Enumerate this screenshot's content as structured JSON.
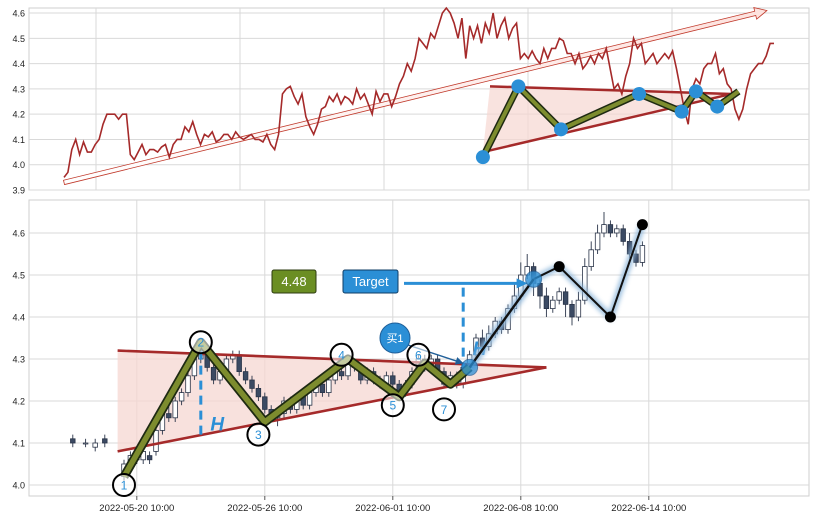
{
  "colors": {
    "line": "#a52a2a",
    "triangle_fill": "#f6d7d2",
    "zigzag_outer": "#1e2a12",
    "zigzag_inner": "#7d8c2e",
    "marker_blue": "#2b8fd6",
    "candle_up_fill": "#ffffff",
    "candle_down_fill": "#3b4a63",
    "target_box": "#2b8fd6",
    "value_box": "#6b8e23",
    "grid": "#d9d9d9"
  },
  "chart_data": [
    {
      "type": "line",
      "panel": "top",
      "ylim": [
        3.9,
        4.62
      ],
      "yticks": [
        "3.9",
        "4.0",
        "4.1",
        "4.2",
        "4.3",
        "4.4",
        "4.5",
        "4.6"
      ],
      "ytick_values": [
        3.9,
        4.0,
        4.1,
        4.2,
        4.3,
        4.4,
        4.5,
        4.6
      ],
      "xlim": [
        0,
        100
      ],
      "grid": true,
      "series": [
        {
          "values": [
            3.95,
            3.97,
            4.06,
            4.1,
            4.04,
            4.09,
            4.05,
            4.05,
            4.08,
            4.1,
            4.16,
            4.2,
            4.2,
            4.2,
            4.18,
            4.2,
            4.2,
            4.04,
            4.02,
            4.05,
            4.08,
            4.04,
            4.06,
            4.06,
            4.05,
            4.07,
            4.08,
            4.03,
            4.08,
            4.1,
            4.1,
            4.15,
            4.13,
            4.17,
            4.12,
            4.08,
            4.12,
            4.11,
            4.13,
            4.09,
            4.1,
            4.12,
            4.12,
            4.1,
            4.13,
            4.11,
            4.1,
            4.11,
            4.12,
            4.1,
            4.1,
            4.09,
            4.12,
            4.08,
            4.06,
            4.12,
            4.28,
            4.3,
            4.31,
            4.27,
            4.24,
            4.28,
            4.19,
            4.15,
            4.12,
            4.16,
            4.22,
            4.23,
            4.27,
            4.25,
            4.28,
            4.24,
            4.27,
            4.26,
            4.24,
            4.3,
            4.26,
            4.28,
            4.24,
            4.2,
            4.29,
            4.25,
            4.28,
            4.28,
            4.23,
            4.27,
            4.32,
            4.35,
            4.4,
            4.37,
            4.42,
            4.5,
            4.48,
            4.46,
            4.52,
            4.5,
            4.55,
            4.6,
            4.62,
            4.6,
            4.56,
            4.5,
            4.58,
            4.42,
            4.55,
            4.5,
            4.55,
            4.48,
            4.56,
            4.52,
            4.6,
            4.5,
            4.55,
            4.58,
            4.5,
            4.54,
            4.56,
            4.42,
            4.44,
            4.42,
            4.45,
            4.42,
            4.4,
            4.46,
            4.42,
            4.46,
            4.46,
            4.5,
            4.49,
            4.44,
            4.44,
            4.4,
            4.44,
            4.38,
            4.4,
            4.43,
            4.4,
            4.44,
            4.42,
            4.46,
            4.38,
            4.3,
            4.32,
            4.28,
            4.35,
            4.4,
            4.5,
            4.46,
            4.48,
            4.4,
            4.42,
            4.44,
            4.4,
            4.42,
            4.44,
            4.42,
            4.45,
            4.38,
            4.3,
            4.22,
            4.16,
            4.3,
            4.34,
            4.32,
            4.38,
            4.4,
            4.4,
            4.44,
            4.36,
            4.38,
            4.32,
            4.3,
            4.22,
            4.18,
            4.22,
            4.3,
            4.36,
            4.38,
            4.4,
            4.4,
            4.43,
            4.48,
            4.48
          ]
        }
      ],
      "triangle": {
        "apex": [
          94,
          4.28
        ],
        "upper_start": [
          60,
          4.31
        ],
        "lower_start": [
          59,
          4.05
        ]
      },
      "zigzag": [
        [
          59,
          4.03
        ],
        [
          64,
          4.31
        ],
        [
          70,
          4.14
        ],
        [
          81,
          4.28
        ],
        [
          87,
          4.21
        ],
        [
          89,
          4.29
        ],
        [
          92,
          4.23
        ],
        [
          95,
          4.29
        ]
      ],
      "markers": [
        [
          59,
          4.03
        ],
        [
          64,
          4.31
        ],
        [
          70,
          4.14
        ],
        [
          81,
          4.28
        ],
        [
          87,
          4.21
        ],
        [
          89,
          4.29
        ],
        [
          92,
          4.23
        ]
      ],
      "trend_arrow": {
        "from": [
          0,
          3.93
        ],
        "to": [
          99,
          4.61
        ]
      }
    },
    {
      "type": "candlestick",
      "panel": "bottom",
      "ylim": [
        3.98,
        4.66
      ],
      "yticks": [
        "4.0",
        "4.1",
        "4.2",
        "4.3",
        "4.4",
        "4.5",
        "4.6"
      ],
      "ytick_values": [
        4.0,
        4.1,
        4.2,
        4.3,
        4.4,
        4.5,
        4.6
      ],
      "xlim": [
        0,
        100
      ],
      "xticks": [
        "2022-05-20 10:00",
        "2022-05-26 10:00",
        "2022-06-01 10:00",
        "2022-06-08 10:00",
        "2022-06-14 10:00"
      ],
      "xtick_values": [
        12,
        32,
        52,
        72,
        92
      ],
      "grid": true,
      "candles": [
        [
          2,
          4.11,
          4.1,
          4.12,
          4.09
        ],
        [
          4,
          4.1,
          4.1,
          4.11,
          4.09
        ],
        [
          5.5,
          4.09,
          4.1,
          4.11,
          4.08
        ],
        [
          7,
          4.11,
          4.1,
          4.12,
          4.09
        ],
        [
          10,
          4.02,
          4.05,
          4.06,
          4.01
        ],
        [
          11,
          4.05,
          4.07,
          4.08,
          4.04
        ],
        [
          12,
          4.07,
          4.06,
          4.08,
          4.05
        ],
        [
          13,
          4.06,
          4.08,
          4.09,
          4.05
        ],
        [
          14,
          4.07,
          4.06,
          4.08,
          4.05
        ],
        [
          15,
          4.08,
          4.13,
          4.14,
          4.07
        ],
        [
          16,
          4.13,
          4.17,
          4.18,
          4.12
        ],
        [
          17,
          4.17,
          4.16,
          4.19,
          4.15
        ],
        [
          18,
          4.16,
          4.2,
          4.21,
          4.15
        ],
        [
          19,
          4.2,
          4.22,
          4.23,
          4.19
        ],
        [
          20,
          4.22,
          4.26,
          4.27,
          4.21
        ],
        [
          21,
          4.26,
          4.3,
          4.31,
          4.25
        ],
        [
          22,
          4.3,
          4.31,
          4.34,
          4.29
        ],
        [
          23,
          4.31,
          4.28,
          4.32,
          4.27
        ],
        [
          24,
          4.28,
          4.25,
          4.3,
          4.24
        ],
        [
          25,
          4.25,
          4.27,
          4.29,
          4.24
        ],
        [
          26,
          4.27,
          4.3,
          4.31,
          4.26
        ],
        [
          27,
          4.3,
          4.31,
          4.32,
          4.29
        ],
        [
          28,
          4.31,
          4.27,
          4.32,
          4.26
        ],
        [
          29,
          4.27,
          4.25,
          4.28,
          4.24
        ],
        [
          30,
          4.25,
          4.23,
          4.26,
          4.22
        ],
        [
          31,
          4.23,
          4.21,
          4.24,
          4.2
        ],
        [
          32,
          4.21,
          4.18,
          4.22,
          4.17
        ],
        [
          33,
          4.18,
          4.16,
          4.19,
          4.15
        ],
        [
          34,
          4.16,
          4.17,
          4.18,
          4.14
        ],
        [
          35,
          4.17,
          4.2,
          4.21,
          4.16
        ],
        [
          36,
          4.2,
          4.18,
          4.21,
          4.17
        ],
        [
          37,
          4.18,
          4.21,
          4.22,
          4.17
        ],
        [
          38,
          4.21,
          4.19,
          4.22,
          4.18
        ],
        [
          39,
          4.19,
          4.22,
          4.23,
          4.18
        ],
        [
          40,
          4.22,
          4.24,
          4.25,
          4.21
        ],
        [
          41,
          4.24,
          4.22,
          4.25,
          4.21
        ],
        [
          42,
          4.22,
          4.25,
          4.26,
          4.21
        ],
        [
          43,
          4.25,
          4.27,
          4.28,
          4.24
        ],
        [
          44,
          4.27,
          4.26,
          4.28,
          4.25
        ],
        [
          45,
          4.26,
          4.29,
          4.3,
          4.25
        ],
        [
          46,
          4.29,
          4.28,
          4.3,
          4.27
        ],
        [
          47,
          4.28,
          4.25,
          4.29,
          4.24
        ],
        [
          48,
          4.25,
          4.27,
          4.28,
          4.24
        ],
        [
          49,
          4.27,
          4.25,
          4.28,
          4.24
        ],
        [
          50,
          4.25,
          4.24,
          4.26,
          4.23
        ],
        [
          51,
          4.24,
          4.26,
          4.27,
          4.23
        ],
        [
          52,
          4.26,
          4.24,
          4.27,
          4.23
        ],
        [
          53,
          4.24,
          4.22,
          4.25,
          4.21
        ],
        [
          54,
          4.22,
          4.24,
          4.25,
          4.21
        ],
        [
          55,
          4.24,
          4.27,
          4.28,
          4.23
        ],
        [
          56,
          4.27,
          4.3,
          4.31,
          4.26
        ],
        [
          57,
          4.3,
          4.28,
          4.31,
          4.27
        ],
        [
          58,
          4.28,
          4.3,
          4.31,
          4.27
        ],
        [
          59,
          4.3,
          4.27,
          4.31,
          4.26
        ],
        [
          60,
          4.27,
          4.24,
          4.28,
          4.23
        ],
        [
          61,
          4.24,
          4.26,
          4.27,
          4.23
        ],
        [
          62,
          4.26,
          4.24,
          4.27,
          4.23
        ],
        [
          63,
          4.24,
          4.28,
          4.29,
          4.23
        ],
        [
          64,
          4.28,
          4.31,
          4.32,
          4.27
        ],
        [
          65,
          4.31,
          4.35,
          4.36,
          4.3
        ],
        [
          66,
          4.35,
          4.33,
          4.37,
          4.32
        ],
        [
          67,
          4.33,
          4.36,
          4.38,
          4.32
        ],
        [
          68,
          4.36,
          4.39,
          4.4,
          4.35
        ],
        [
          69,
          4.39,
          4.37,
          4.4,
          4.36
        ],
        [
          70,
          4.37,
          4.42,
          4.43,
          4.36
        ],
        [
          71,
          4.42,
          4.45,
          4.48,
          4.41
        ],
        [
          72,
          4.45,
          4.5,
          4.53,
          4.44
        ],
        [
          73,
          4.5,
          4.52,
          4.55,
          4.49
        ],
        [
          74,
          4.52,
          4.48,
          4.53,
          4.45
        ],
        [
          75,
          4.48,
          4.45,
          4.49,
          4.42
        ],
        [
          76,
          4.45,
          4.42,
          4.47,
          4.4
        ],
        [
          77,
          4.42,
          4.44,
          4.45,
          4.41
        ],
        [
          78,
          4.44,
          4.46,
          4.47,
          4.43
        ],
        [
          79,
          4.46,
          4.43,
          4.47,
          4.4
        ],
        [
          80,
          4.43,
          4.4,
          4.44,
          4.38
        ],
        [
          81,
          4.4,
          4.44,
          4.46,
          4.39
        ],
        [
          82,
          4.44,
          4.52,
          4.54,
          4.43
        ],
        [
          83,
          4.52,
          4.56,
          4.58,
          4.51
        ],
        [
          84,
          4.56,
          4.6,
          4.62,
          4.55
        ],
        [
          85,
          4.6,
          4.62,
          4.65,
          4.59
        ],
        [
          86,
          4.62,
          4.6,
          4.63,
          4.59
        ],
        [
          87,
          4.6,
          4.61,
          4.62,
          4.59
        ],
        [
          88,
          4.61,
          4.58,
          4.62,
          4.57
        ],
        [
          89,
          4.58,
          4.55,
          4.6,
          4.54
        ],
        [
          90,
          4.55,
          4.53,
          4.56,
          4.52
        ],
        [
          91,
          4.53,
          4.57,
          4.58,
          4.52
        ]
      ],
      "triangle": {
        "apex": [
          76,
          4.28
        ],
        "upper_start": [
          9,
          4.32
        ],
        "lower_start": [
          9,
          4.08
        ]
      },
      "zigzag": [
        [
          10,
          4.02
        ],
        [
          22,
          4.34
        ],
        [
          32,
          4.15
        ],
        [
          45,
          4.3
        ],
        [
          53,
          4.21
        ],
        [
          57,
          4.29
        ],
        [
          61,
          4.24
        ],
        [
          64,
          4.28
        ],
        [
          74,
          4.49
        ]
      ],
      "extension": [
        [
          74,
          4.49
        ],
        [
          78,
          4.52
        ],
        [
          86,
          4.4
        ],
        [
          91,
          4.62
        ]
      ],
      "points": [
        {
          "label": "1",
          "at": [
            10,
            4.0
          ]
        },
        {
          "label": "2",
          "at": [
            22,
            4.34
          ]
        },
        {
          "label": "3",
          "at": [
            31,
            4.12
          ]
        },
        {
          "label": "4",
          "at": [
            44,
            4.31
          ]
        },
        {
          "label": "5",
          "at": [
            52,
            4.19
          ]
        },
        {
          "label": "6",
          "at": [
            56,
            4.31
          ]
        },
        {
          "label": "7",
          "at": [
            60,
            4.18
          ]
        }
      ],
      "black_dots": [
        [
          78,
          4.52
        ],
        [
          86,
          4.4
        ],
        [
          91,
          4.62
        ]
      ],
      "blue_dots": [
        [
          64,
          4.28
        ],
        [
          74,
          4.49
        ]
      ],
      "h_label": "H",
      "h_lines": [
        {
          "x": 22,
          "from": 4.32,
          "to": 4.12
        },
        {
          "x": 63,
          "from": 4.47,
          "to": 4.28
        }
      ],
      "target_label": "Target",
      "value_label": "4.48",
      "buy_label": "买1",
      "target_arrow": {
        "from": [
          51,
          4.48
        ],
        "to": [
          74,
          4.48
        ]
      },
      "buy_arrow": {
        "from": [
          51,
          4.34
        ],
        "to": [
          64,
          4.28
        ]
      }
    }
  ]
}
